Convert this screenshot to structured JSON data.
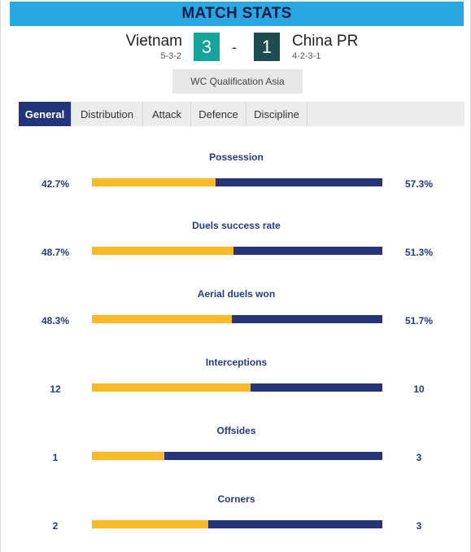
{
  "header": {
    "title": "MATCH STATS"
  },
  "match": {
    "home": {
      "name": "Vietnam",
      "formation": "5-3-2",
      "score": "3"
    },
    "away": {
      "name": "China PR",
      "formation": "4-2-3-1",
      "score": "1"
    },
    "separator": "-",
    "competition": "WC Qualification Asia"
  },
  "colors": {
    "home_bar": "#fbb928",
    "away_bar": "#263479",
    "accent": "#2aa7e0",
    "active_tab": "#23357a",
    "home_score_bg": "#16a39a",
    "away_score_bg": "#1d4d4e"
  },
  "tabs": [
    {
      "label": "General",
      "active": true
    },
    {
      "label": "Distribution",
      "active": false
    },
    {
      "label": "Attack",
      "active": false
    },
    {
      "label": "Defence",
      "active": false
    },
    {
      "label": "Discipline",
      "active": false
    }
  ],
  "stats": [
    {
      "label": "Possession",
      "home": "42.7%",
      "away": "57.3%",
      "home_share": 42.7
    },
    {
      "label": "Duels success rate",
      "home": "48.7%",
      "away": "51.3%",
      "home_share": 48.7
    },
    {
      "label": "Aerial duels won",
      "home": "48.3%",
      "away": "51.7%",
      "home_share": 48.3
    },
    {
      "label": "Interceptions",
      "home": "12",
      "away": "10",
      "home_share": 54.5
    },
    {
      "label": "Offsides",
      "home": "1",
      "away": "3",
      "home_share": 25
    },
    {
      "label": "Corners",
      "home": "2",
      "away": "3",
      "home_share": 40
    }
  ]
}
